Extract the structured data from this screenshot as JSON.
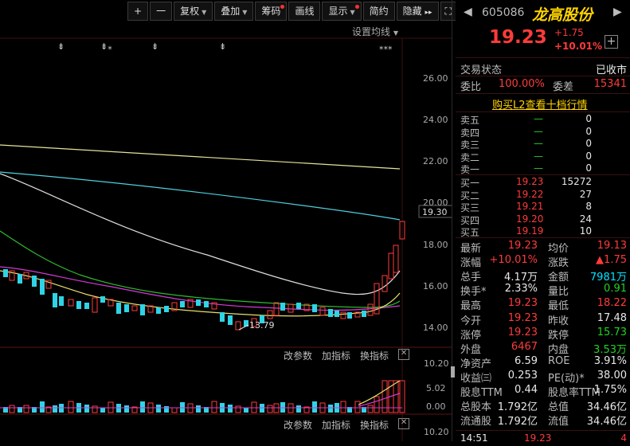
{
  "toolbar": {
    "zoom_in": "+",
    "zoom_out": "一",
    "fuquan": "复权",
    "diejia": "叠加",
    "chouma": "筹码",
    "huaxian": "画线",
    "xianshi": "显示",
    "jianyue": "简约",
    "yincang": "隐藏",
    "expand": "▸▸"
  },
  "chart": {
    "ma_setting": "设置均线",
    "price_axis": [
      "26.00",
      "24.00",
      "22.00",
      "20.00",
      "18.00",
      "16.00",
      "14.00"
    ],
    "current_price_tag": "19.30",
    "low_annotation": "13.79",
    "event_markers": [
      "⇟",
      "⇟⁎",
      "⇟",
      "⇟",
      "⁎⁎⁎"
    ],
    "indicator1": {
      "btn1": "改参数",
      "btn2": "加指标",
      "btn3": "换指标",
      "close": "✕",
      "axis": [
        "10.20",
        "5.02",
        "0.00"
      ]
    },
    "indicator2": {
      "btn1": "改参数",
      "btn2": "加指标",
      "btn3": "换指标",
      "close": "✕",
      "axis": [
        "10.20"
      ]
    }
  },
  "quote": {
    "code": "605086",
    "name": "龙高股份",
    "price": "19.23",
    "change": "+1.75",
    "change_pct": "+10.01%",
    "add": "+",
    "status_label": "交易状态",
    "status_value": "已收市",
    "weibi_label": "委比",
    "weibi_value": "100.00%",
    "weicha_label": "委差",
    "weicha_value": "15341",
    "l2_link": "购买L2查看十档行情",
    "sells": [
      {
        "label": "卖五",
        "price": "—",
        "vol": "0"
      },
      {
        "label": "卖四",
        "price": "—",
        "vol": "0"
      },
      {
        "label": "卖三",
        "price": "—",
        "vol": "0"
      },
      {
        "label": "卖二",
        "price": "—",
        "vol": "0"
      },
      {
        "label": "卖一",
        "price": "—",
        "vol": "0"
      }
    ],
    "buys": [
      {
        "label": "买一",
        "price": "19.23",
        "vol": "15272"
      },
      {
        "label": "买二",
        "price": "19.22",
        "vol": "27"
      },
      {
        "label": "买三",
        "price": "19.21",
        "vol": "8"
      },
      {
        "label": "买四",
        "price": "19.20",
        "vol": "24"
      },
      {
        "label": "买五",
        "price": "19.19",
        "vol": "10"
      }
    ],
    "stats": [
      {
        "l1": "最新",
        "v1": "19.23",
        "c1": "red",
        "l2": "均价",
        "v2": "19.13",
        "c2": "red"
      },
      {
        "l1": "涨幅",
        "v1": "+10.01%",
        "c1": "red",
        "l2": "涨跌",
        "v2": "▲1.75",
        "c2": "red"
      },
      {
        "l1": "总手",
        "v1": "4.17万",
        "c1": "white",
        "l2": "金额",
        "v2": "7981万",
        "c2": "cyan"
      },
      {
        "l1": "换手*",
        "v1": "2.33%",
        "c1": "white",
        "l2": "量比",
        "v2": "0.91",
        "c2": "green"
      },
      {
        "l1": "最高",
        "v1": "19.23",
        "c1": "red",
        "l2": "最低",
        "v2": "18.22",
        "c2": "red"
      },
      {
        "l1": "今开",
        "v1": "19.23",
        "c1": "red",
        "l2": "昨收",
        "v2": "17.48",
        "c2": "white"
      },
      {
        "l1": "涨停",
        "v1": "19.23",
        "c1": "red",
        "l2": "跌停",
        "v2": "15.73",
        "c2": "green"
      },
      {
        "l1": "外盘",
        "v1": "6467",
        "c1": "red",
        "l2": "内盘",
        "v2": "3.53万",
        "c2": "green"
      },
      {
        "l1": "净资产",
        "v1": "6.59",
        "c1": "white",
        "l2": "ROE",
        "v2": "3.91%",
        "c2": "white"
      },
      {
        "l1": "收益㈢",
        "v1": "0.253",
        "c1": "white",
        "l2": "PE(动)*",
        "v2": "38.00",
        "c2": "white"
      },
      {
        "l1": "股息TTM",
        "v1": "0.44",
        "c1": "white",
        "l2": "股息率TTM",
        "v2": "1.75%",
        "c2": "white"
      },
      {
        "l1": "总股本",
        "v1": "1.792亿",
        "c1": "white",
        "l2": "总值",
        "v2": "34.46亿",
        "c2": "white"
      },
      {
        "l1": "流通股",
        "v1": "1.792亿",
        "c1": "white",
        "l2": "流值",
        "v2": "34.46亿",
        "c2": "white"
      }
    ],
    "tick": {
      "time": "14:51",
      "price": "19.23",
      "vol": "4"
    }
  }
}
